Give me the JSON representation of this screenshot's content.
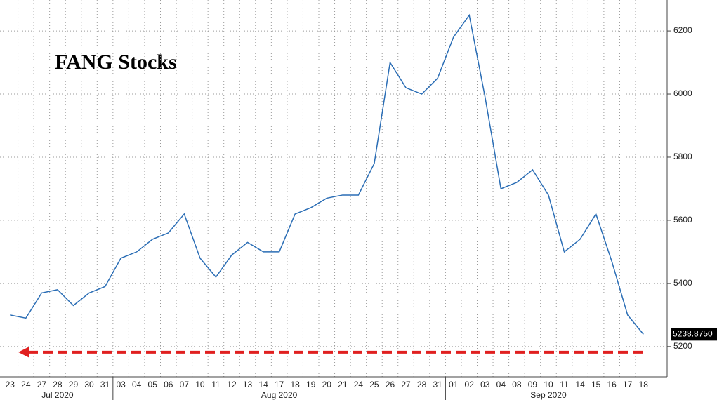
{
  "chart_data": {
    "type": "line",
    "title": "FANG Stocks",
    "categories": [
      "23",
      "24",
      "27",
      "28",
      "29",
      "30",
      "31",
      "03",
      "04",
      "05",
      "06",
      "07",
      "10",
      "11",
      "12",
      "13",
      "14",
      "17",
      "18",
      "19",
      "20",
      "21",
      "24",
      "25",
      "26",
      "27",
      "28",
      "31",
      "01",
      "02",
      "03",
      "04",
      "08",
      "09",
      "10",
      "11",
      "14",
      "15",
      "16",
      "17",
      "18"
    ],
    "month_labels": [
      "Jul 2020",
      "Aug 2020",
      "Sep 2020"
    ],
    "series": [
      {
        "color": "#2a6db5",
        "values": [
          5300,
          5290,
          5370,
          5380,
          5330,
          5370,
          5390,
          5480,
          5500,
          5540,
          5560,
          5620,
          5480,
          5420,
          5490,
          5530,
          5500,
          5500,
          5620,
          5640,
          5670,
          5680,
          5680,
          5780,
          6100,
          6020,
          6000,
          6050,
          6180,
          6250,
          5990,
          5700,
          5720,
          5760,
          5680,
          5500,
          5540,
          5620,
          5470,
          5300,
          5238.875
        ],
        "value_labels": [
          null,
          null,
          null,
          null,
          null,
          null,
          null,
          null,
          null,
          null,
          null,
          null,
          null,
          null,
          null,
          null,
          null,
          null,
          null,
          null,
          null,
          null,
          null,
          null,
          null,
          null,
          null,
          null,
          null,
          null,
          null,
          null,
          null,
          null,
          null,
          null,
          null,
          null,
          null,
          null,
          "5238.8750"
        ]
      }
    ],
    "reference_line": {
      "value": 5182,
      "color": "#e02020"
    },
    "ylim": [
      5104,
      6298
    ],
    "yticks": [
      5200,
      5400,
      5600,
      5800,
      6000,
      6200
    ],
    "grid": true
  }
}
